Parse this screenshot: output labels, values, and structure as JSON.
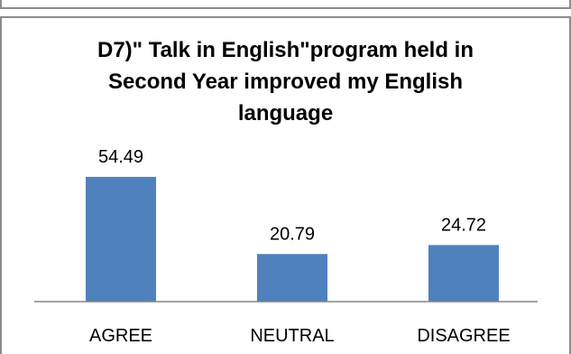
{
  "chart_data": {
    "type": "bar",
    "title": "D7)\" Talk in English\"\u0002program held in\nSecond Year improved my English\nlanguage",
    "categories": [
      "AGREE",
      "NEUTRAL",
      "DISAGREE"
    ],
    "series": [
      {
        "values": [
          54.49,
          20.79,
          24.72
        ]
      }
    ],
    "data_labels": [
      "54.49",
      "20.79",
      "24.72"
    ],
    "xlabel": "",
    "ylabel": "",
    "ylim": [
      0,
      60
    ],
    "grid": false,
    "legend": "none",
    "bar_color": "#4f81bd",
    "axis_color": "#868686"
  }
}
